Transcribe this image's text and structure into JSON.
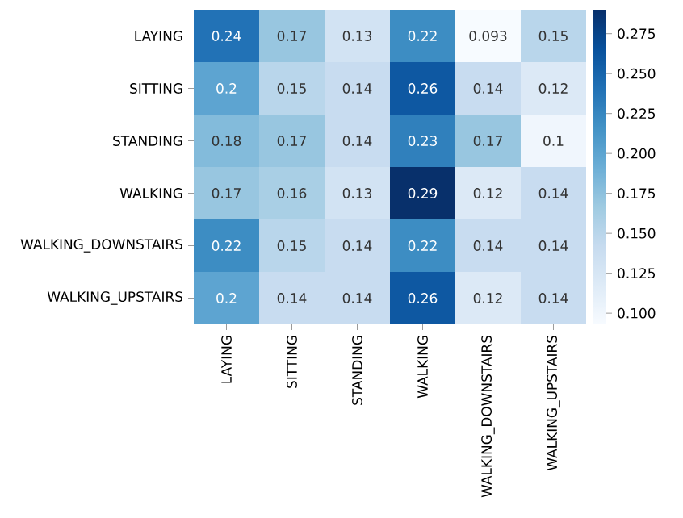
{
  "chart_data": {
    "type": "heatmap",
    "categories": [
      "LAYING",
      "SITTING",
      "STANDING",
      "WALKING",
      "WALKING_DOWNSTAIRS",
      "WALKING_UPSTAIRS"
    ],
    "y_categories": [
      "LAYING",
      "SITTING",
      "STANDING",
      "WALKING",
      "WALKING_DOWNSTAIRS",
      "WALKING_UPSTAIRS"
    ],
    "cells": [
      [
        0.24,
        0.17,
        0.13,
        0.22,
        0.093,
        0.15
      ],
      [
        0.2,
        0.15,
        0.14,
        0.26,
        0.14,
        0.12
      ],
      [
        0.18,
        0.17,
        0.14,
        0.23,
        0.17,
        0.1
      ],
      [
        0.17,
        0.16,
        0.13,
        0.29,
        0.12,
        0.14
      ],
      [
        0.22,
        0.15,
        0.14,
        0.22,
        0.14,
        0.14
      ],
      [
        0.2,
        0.14,
        0.14,
        0.26,
        0.12,
        0.14
      ]
    ],
    "data_labels": true,
    "clim": [
      0.093,
      0.29
    ],
    "cticks": [
      {
        "value": 0.1,
        "label": "0.100"
      },
      {
        "value": 0.125,
        "label": "0.125"
      },
      {
        "value": 0.15,
        "label": "0.150"
      },
      {
        "value": 0.175,
        "label": "0.175"
      },
      {
        "value": 0.2,
        "label": "0.200"
      },
      {
        "value": 0.225,
        "label": "0.225"
      },
      {
        "value": 0.25,
        "label": "0.250"
      },
      {
        "value": 0.275,
        "label": "0.275"
      }
    ]
  }
}
